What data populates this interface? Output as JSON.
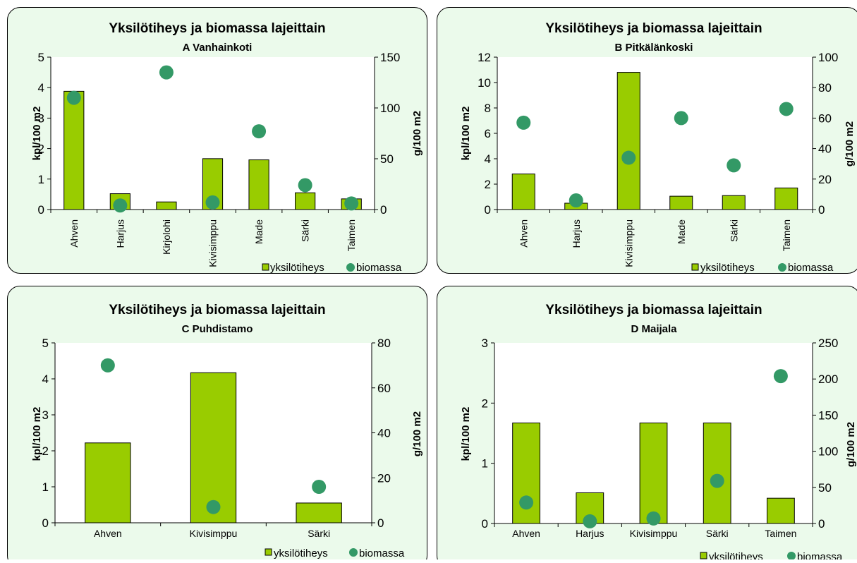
{
  "legend": {
    "bar_label": "yksilötiheys",
    "dot_label": "biomassa"
  },
  "colors": {
    "bar": "#99cc00",
    "dot": "#339966",
    "background": "#ebfaeb",
    "frame": "#000000"
  },
  "chart_data": [
    {
      "type": "bar",
      "title": "Yksilötiheys ja biomassa lajeittain",
      "subtitle": "A Vanhainkoti",
      "ylabel": "kpl/100 m2",
      "y2label": "g/100 m2",
      "categories": [
        "Ahven",
        "Harjus",
        "Kirjolohi",
        "Kivisimppu",
        "Made",
        "Särki",
        "Taimen"
      ],
      "ylim": [
        0,
        5
      ],
      "yticks": [
        0,
        1,
        2,
        3,
        4,
        5
      ],
      "y2lim": [
        0,
        150
      ],
      "y2ticks": [
        0,
        50,
        100,
        150
      ],
      "xlabel_rotated": true,
      "series": [
        {
          "name": "yksilötiheys",
          "axis": "left",
          "values": [
            3.88,
            0.52,
            0.25,
            1.67,
            1.63,
            0.55,
            0.35
          ]
        },
        {
          "name": "biomassa",
          "axis": "right",
          "values": [
            110,
            4,
            135,
            7,
            77,
            24,
            6
          ]
        }
      ]
    },
    {
      "type": "bar",
      "title": "Yksilötiheys ja biomassa lajeittain",
      "subtitle": "B Pitkälänkoski",
      "ylabel": "kpl/100 m2",
      "y2label": "g/100 m2",
      "categories": [
        "Ahven",
        "Harjus",
        "Kivisimppu",
        "Made",
        "Särki",
        "Taimen"
      ],
      "ylim": [
        0,
        12
      ],
      "yticks": [
        0,
        2,
        4,
        6,
        8,
        10,
        12
      ],
      "y2lim": [
        0,
        100
      ],
      "y2ticks": [
        0,
        20,
        40,
        60,
        80,
        100
      ],
      "xlabel_rotated": true,
      "series": [
        {
          "name": "yksilötiheys",
          "axis": "left",
          "values": [
            2.8,
            0.5,
            10.8,
            1.05,
            1.1,
            1.7
          ]
        },
        {
          "name": "biomassa",
          "axis": "right",
          "values": [
            57,
            6,
            34,
            60,
            29,
            66
          ]
        }
      ]
    },
    {
      "type": "bar",
      "title": "Yksilötiheys ja biomassa lajeittain",
      "subtitle": "C Puhdistamo",
      "ylabel": "kpl/100 m2",
      "y2label": "g/100 m2",
      "categories": [
        "Ahven",
        "Kivisimppu",
        "Särki"
      ],
      "ylim": [
        0,
        5
      ],
      "yticks": [
        0,
        1,
        2,
        3,
        4,
        5
      ],
      "y2lim": [
        0,
        80
      ],
      "y2ticks": [
        0,
        20,
        40,
        60,
        80
      ],
      "xlabel_rotated": false,
      "series": [
        {
          "name": "yksilötiheys",
          "axis": "left",
          "values": [
            2.22,
            4.17,
            0.55
          ]
        },
        {
          "name": "biomassa",
          "axis": "right",
          "values": [
            70,
            7,
            16
          ]
        }
      ]
    },
    {
      "type": "bar",
      "title": "Yksilötiheys ja biomassa lajeittain",
      "subtitle": "D Maijala",
      "ylabel": "kpl/100 m2",
      "y2label": "g/100 m2",
      "categories": [
        "Ahven",
        "Harjus",
        "Kivisimppu",
        "Särki",
        "Taimen"
      ],
      "ylim": [
        0,
        3
      ],
      "yticks": [
        0,
        1,
        2,
        3
      ],
      "y2lim": [
        0,
        250
      ],
      "y2ticks": [
        0,
        50,
        100,
        150,
        200,
        250
      ],
      "xlabel_rotated": false,
      "series": [
        {
          "name": "yksilötiheys",
          "axis": "left",
          "values": [
            1.67,
            0.51,
            1.67,
            1.67,
            0.42
          ]
        },
        {
          "name": "biomassa",
          "axis": "right",
          "values": [
            29,
            3,
            7,
            59,
            204
          ]
        }
      ]
    }
  ]
}
